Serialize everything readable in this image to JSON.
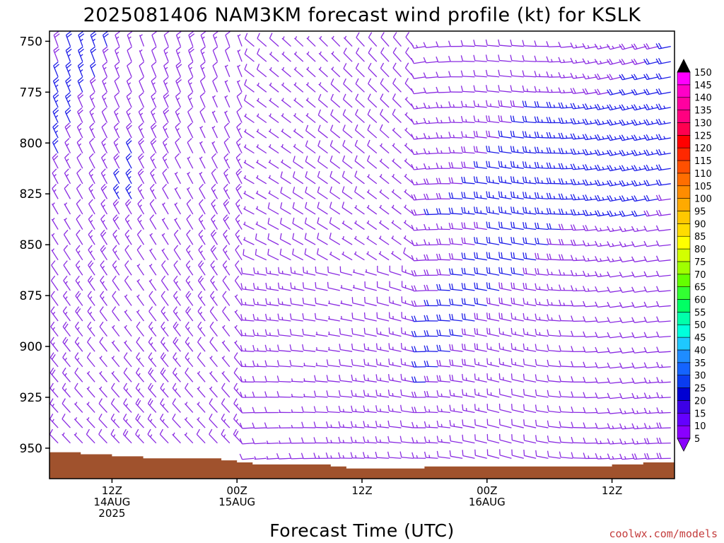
{
  "chart_data": {
    "type": "wind-barb-profile",
    "title": "2025081406 NAM3KM forecast wind profile (kt) for KSLK",
    "xlabel": "Forecast Time (UTC)",
    "credit": "coolwx.com/models",
    "y_axis": {
      "quantity": "pressure (hPa)",
      "range": [
        965,
        745
      ],
      "ticks": [
        750,
        775,
        800,
        825,
        850,
        875,
        900,
        925,
        950
      ]
    },
    "x_axis": {
      "quantity": "forecast time (UTC)",
      "range_start": "2025-08-14T06Z",
      "range_end": "2025-08-16T18Z",
      "ticks": [
        {
          "lines": [
            "12Z",
            "14AUG",
            "2025"
          ]
        },
        {
          "lines": [
            "00Z",
            "15AUG"
          ]
        },
        {
          "lines": [
            "12Z"
          ]
        },
        {
          "lines": [
            "00Z",
            "16AUG"
          ]
        },
        {
          "lines": [
            "12Z"
          ]
        }
      ]
    },
    "colorbar": {
      "units": "kt",
      "values": [
        5,
        10,
        15,
        20,
        25,
        30,
        35,
        40,
        45,
        50,
        55,
        60,
        65,
        70,
        75,
        80,
        85,
        90,
        95,
        100,
        105,
        110,
        115,
        120,
        125,
        130,
        135,
        140,
        145,
        150
      ],
      "colors": [
        "#8a00ff",
        "#6400ff",
        "#3c00e6",
        "#0000d2",
        "#0a3cf0",
        "#1464ff",
        "#1e8cff",
        "#1ec8ff",
        "#00ffdc",
        "#00ffaa",
        "#00ff64",
        "#32ff32",
        "#64ff00",
        "#a0ff00",
        "#d2ff00",
        "#ffff00",
        "#ffdc00",
        "#ffc800",
        "#ffaa00",
        "#ff8c00",
        "#ff6e00",
        "#ff5000",
        "#ff2800",
        "#ff0000",
        "#ff0050",
        "#ff0080",
        "#ff00a0",
        "#ff00c8",
        "#ff00ff",
        "#000000"
      ]
    },
    "terrain": {
      "color": "#a0522d",
      "surface_pressure": [
        952,
        952,
        953,
        953,
        954,
        954,
        955,
        955,
        955,
        955,
        955,
        956,
        957,
        958,
        958,
        958,
        958,
        958,
        959,
        960,
        960,
        960,
        960,
        960,
        959,
        959,
        959,
        959,
        959,
        959,
        959,
        959,
        959,
        959,
        959,
        959,
        958,
        958,
        957,
        957
      ]
    },
    "barb_colors": {
      "light": "#8a2be2",
      "strong": "#1e1ee8"
    },
    "wind_regimes": [
      {
        "period": "14AUG 06Z-21Z",
        "levels": "750-950",
        "direction_deg": 340,
        "speed_kt": [
          5,
          20
        ]
      },
      {
        "period": "14AUG 21Z-15AUG 18Z",
        "levels": "750-950",
        "direction_deg": 300,
        "speed_kt": [
          5,
          15
        ]
      },
      {
        "period": "15AUG 18Z-16AUG 18Z",
        "levels": "750-950",
        "direction_deg": 260,
        "speed_kt": [
          10,
          25
        ]
      }
    ]
  }
}
